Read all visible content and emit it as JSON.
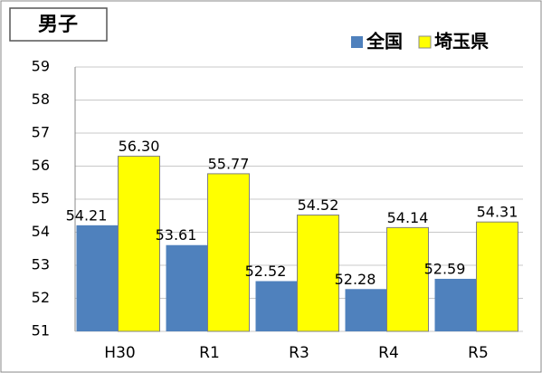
{
  "chart_data": {
    "type": "bar",
    "title": "男子",
    "categories": [
      "H30",
      "R1",
      "R3",
      "R4",
      "R5"
    ],
    "series": [
      {
        "name": "全国",
        "color": "#4f81bd",
        "values": [
          54.21,
          53.61,
          52.52,
          52.28,
          52.59
        ],
        "value_labels": [
          "54.21",
          "53.61",
          "52.52",
          "52.28",
          "52.59"
        ]
      },
      {
        "name": "埼玉県",
        "color": "#ffff00",
        "values": [
          56.3,
          55.77,
          54.52,
          54.14,
          54.31
        ],
        "value_labels": [
          "56.30",
          "55.77",
          "54.52",
          "54.14",
          "54.31"
        ]
      }
    ],
    "ylim": [
      51,
      59
    ],
    "yticks": [
      51,
      52,
      53,
      54,
      55,
      56,
      57,
      58,
      59
    ],
    "grid": true,
    "legend": "top-right"
  }
}
